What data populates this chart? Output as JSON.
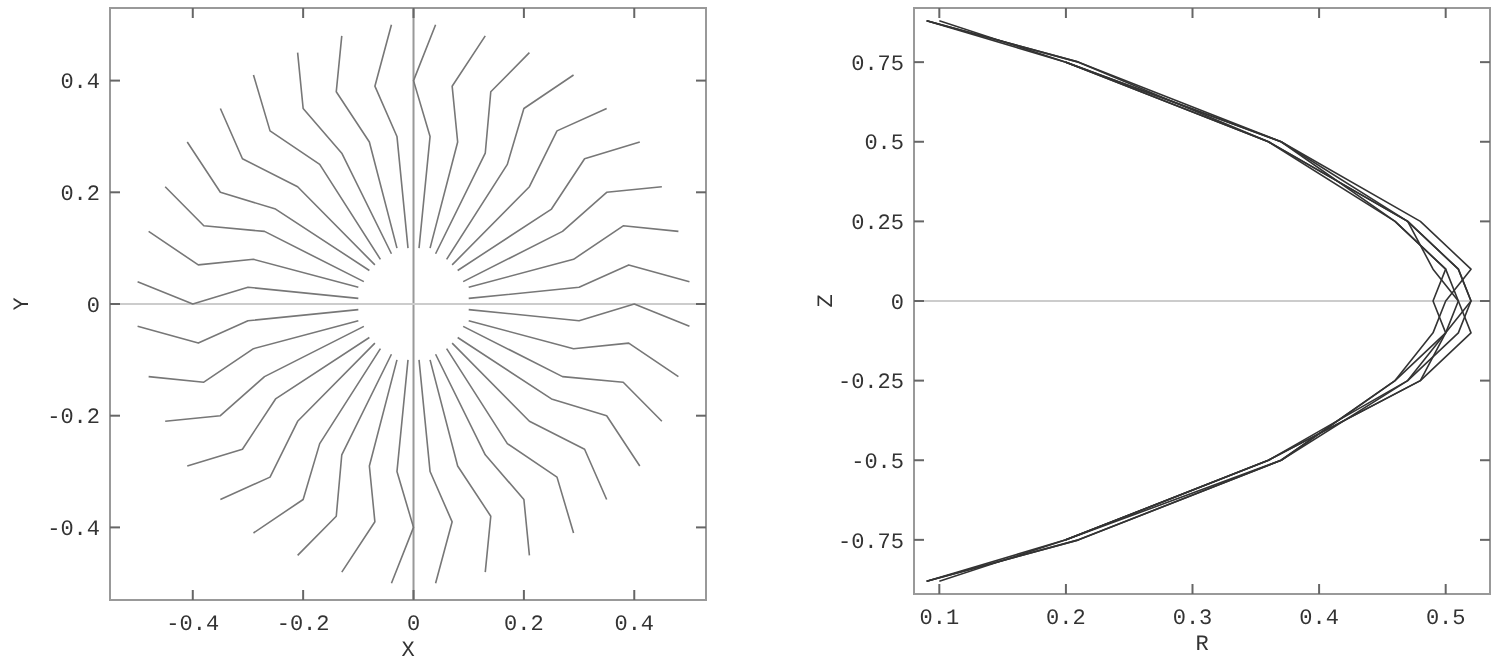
{
  "chart_data": [
    {
      "type": "line",
      "xlabel": "X",
      "ylabel": "Y",
      "xlim": [
        -0.55,
        0.53
      ],
      "ylim": [
        -0.53,
        0.53
      ],
      "xticks": [
        -0.4,
        -0.2,
        0,
        0.2,
        0.4
      ],
      "yticks": [
        -0.4,
        -0.2,
        0,
        0.2,
        0.4
      ],
      "grid": false,
      "marker": "none",
      "line_style": "solid",
      "ref_lines": [
        {
          "axis": "x",
          "value": 0,
          "color": "#999999"
        },
        {
          "axis": "y",
          "value": 0,
          "color": "#cccccc"
        }
      ],
      "series": [
        {
          "color": "#777777",
          "x": [
            0.1,
            0.3,
            0.39,
            0.5
          ],
          "values": [
            0.01,
            0.03,
            0.07,
            0.04
          ]
        },
        {
          "color": "#777777",
          "x": [
            0.1,
            0.29,
            0.38,
            0.48
          ],
          "values": [
            0.03,
            0.08,
            0.14,
            0.13
          ]
        },
        {
          "color": "#777777",
          "x": [
            0.09,
            0.27,
            0.35,
            0.45
          ],
          "values": [
            0.04,
            0.13,
            0.2,
            0.21
          ]
        },
        {
          "color": "#777777",
          "x": [
            0.08,
            0.25,
            0.31,
            0.41
          ],
          "values": [
            0.06,
            0.17,
            0.26,
            0.29
          ]
        },
        {
          "color": "#777777",
          "x": [
            0.07,
            0.21,
            0.26,
            0.35
          ],
          "values": [
            0.07,
            0.21,
            0.31,
            0.35
          ]
        },
        {
          "color": "#777777",
          "x": [
            0.06,
            0.17,
            0.2,
            0.29
          ],
          "values": [
            0.08,
            0.25,
            0.35,
            0.41
          ]
        },
        {
          "color": "#777777",
          "x": [
            0.04,
            0.13,
            0.14,
            0.21
          ],
          "values": [
            0.09,
            0.27,
            0.38,
            0.45
          ]
        },
        {
          "color": "#777777",
          "x": [
            0.03,
            0.08,
            0.07,
            0.13
          ],
          "values": [
            0.1,
            0.29,
            0.39,
            0.48
          ]
        },
        {
          "color": "#777777",
          "x": [
            0.01,
            0.03,
            0,
            0.04
          ],
          "values": [
            0.1,
            0.3,
            0.4,
            0.5
          ]
        },
        {
          "color": "#777777",
          "x": [
            -0.01,
            -0.03,
            -0.07,
            -0.04
          ],
          "values": [
            0.1,
            0.3,
            0.39,
            0.5
          ]
        },
        {
          "color": "#777777",
          "x": [
            -0.03,
            -0.08,
            -0.14,
            -0.13
          ],
          "values": [
            0.1,
            0.29,
            0.38,
            0.48
          ]
        },
        {
          "color": "#777777",
          "x": [
            -0.04,
            -0.13,
            -0.2,
            -0.21
          ],
          "values": [
            0.09,
            0.27,
            0.35,
            0.45
          ]
        },
        {
          "color": "#777777",
          "x": [
            -0.06,
            -0.17,
            -0.26,
            -0.29
          ],
          "values": [
            0.08,
            0.25,
            0.31,
            0.41
          ]
        },
        {
          "color": "#777777",
          "x": [
            -0.07,
            -0.21,
            -0.31,
            -0.35
          ],
          "values": [
            0.07,
            0.21,
            0.26,
            0.35
          ]
        },
        {
          "color": "#777777",
          "x": [
            -0.08,
            -0.25,
            -0.35,
            -0.41
          ],
          "values": [
            0.06,
            0.17,
            0.2,
            0.29
          ]
        },
        {
          "color": "#777777",
          "x": [
            -0.09,
            -0.27,
            -0.38,
            -0.45
          ],
          "values": [
            0.04,
            0.13,
            0.14,
            0.21
          ]
        },
        {
          "color": "#777777",
          "x": [
            -0.1,
            -0.29,
            -0.39,
            -0.48
          ],
          "values": [
            0.03,
            0.08,
            0.07,
            0.13
          ]
        },
        {
          "color": "#777777",
          "x": [
            -0.1,
            -0.3,
            -0.4,
            -0.5
          ],
          "values": [
            0.01,
            0.03,
            0,
            0.04
          ]
        },
        {
          "color": "#777777",
          "x": [
            -0.1,
            -0.3,
            -0.39,
            -0.5
          ],
          "values": [
            -0.01,
            -0.03,
            -0.07,
            -0.04
          ]
        },
        {
          "color": "#777777",
          "x": [
            -0.1,
            -0.29,
            -0.38,
            -0.48
          ],
          "values": [
            -0.03,
            -0.08,
            -0.14,
            -0.13
          ]
        },
        {
          "color": "#777777",
          "x": [
            -0.09,
            -0.27,
            -0.35,
            -0.45
          ],
          "values": [
            -0.04,
            -0.13,
            -0.2,
            -0.21
          ]
        },
        {
          "color": "#777777",
          "x": [
            -0.08,
            -0.25,
            -0.31,
            -0.41
          ],
          "values": [
            -0.06,
            -0.17,
            -0.26,
            -0.29
          ]
        },
        {
          "color": "#777777",
          "x": [
            -0.07,
            -0.21,
            -0.26,
            -0.35
          ],
          "values": [
            -0.07,
            -0.21,
            -0.31,
            -0.35
          ]
        },
        {
          "color": "#777777",
          "x": [
            -0.06,
            -0.17,
            -0.2,
            -0.29
          ],
          "values": [
            -0.08,
            -0.25,
            -0.35,
            -0.41
          ]
        },
        {
          "color": "#777777",
          "x": [
            -0.04,
            -0.13,
            -0.14,
            -0.21
          ],
          "values": [
            -0.09,
            -0.27,
            -0.38,
            -0.45
          ]
        },
        {
          "color": "#777777",
          "x": [
            -0.03,
            -0.08,
            -0.07,
            -0.13
          ],
          "values": [
            -0.1,
            -0.29,
            -0.39,
            -0.48
          ]
        },
        {
          "color": "#777777",
          "x": [
            -0.01,
            -0.03,
            0,
            -0.04
          ],
          "values": [
            -0.1,
            -0.3,
            -0.4,
            -0.5
          ]
        },
        {
          "color": "#777777",
          "x": [
            0.01,
            0.03,
            0.07,
            0.04
          ],
          "values": [
            -0.1,
            -0.3,
            -0.39,
            -0.5
          ]
        },
        {
          "color": "#777777",
          "x": [
            0.03,
            0.08,
            0.14,
            0.13
          ],
          "values": [
            -0.1,
            -0.29,
            -0.38,
            -0.48
          ]
        },
        {
          "color": "#777777",
          "x": [
            0.04,
            0.13,
            0.2,
            0.21
          ],
          "values": [
            -0.09,
            -0.27,
            -0.35,
            -0.45
          ]
        },
        {
          "color": "#777777",
          "x": [
            0.06,
            0.17,
            0.26,
            0.29
          ],
          "values": [
            -0.08,
            -0.25,
            -0.31,
            -0.41
          ]
        },
        {
          "color": "#777777",
          "x": [
            0.07,
            0.21,
            0.31,
            0.35
          ],
          "values": [
            -0.07,
            -0.21,
            -0.26,
            -0.35
          ]
        },
        {
          "color": "#777777",
          "x": [
            0.08,
            0.25,
            0.35,
            0.41
          ],
          "values": [
            -0.06,
            -0.17,
            -0.2,
            -0.29
          ]
        },
        {
          "color": "#777777",
          "x": [
            0.09,
            0.27,
            0.38,
            0.45
          ],
          "values": [
            -0.04,
            -0.13,
            -0.14,
            -0.21
          ]
        },
        {
          "color": "#777777",
          "x": [
            0.1,
            0.29,
            0.39,
            0.48
          ],
          "values": [
            -0.03,
            -0.08,
            -0.07,
            -0.13
          ]
        },
        {
          "color": "#777777",
          "x": [
            0.1,
            0.3,
            0.4,
            0.5
          ],
          "values": [
            -0.01,
            -0.03,
            0,
            -0.04
          ]
        }
      ]
    },
    {
      "type": "line",
      "xlabel": "R",
      "ylabel": "Z",
      "xlim": [
        0.08,
        0.535
      ],
      "ylim": [
        -0.92,
        0.92
      ],
      "xticks": [
        0.1,
        0.2,
        0.3,
        0.4,
        0.5
      ],
      "yticks": [
        -0.75,
        -0.5,
        -0.25,
        0,
        0.25,
        0.5,
        0.75
      ],
      "grid": false,
      "marker": "none",
      "line_style": "solid",
      "ref_lines": [
        {
          "axis": "y",
          "value": 0,
          "color": "#cccccc"
        }
      ],
      "series": [
        {
          "color": "#333333",
          "x": [
            0.09,
            0.2,
            0.36,
            0.46,
            0.5,
            0.51,
            0.5,
            0.46,
            0.37,
            0.21,
            0.09
          ],
          "values": [
            0.88,
            0.75,
            0.5,
            0.25,
            0.1,
            0,
            -0.1,
            -0.25,
            -0.5,
            -0.75,
            -0.88
          ]
        },
        {
          "color": "#333333",
          "x": [
            0.2,
            0.37,
            0.47,
            0.51,
            0.52,
            0.51,
            0.47,
            0.36,
            0.2,
            0.09
          ],
          "values": [
            0.75,
            0.5,
            0.25,
            0.1,
            0,
            -0.1,
            -0.25,
            -0.5,
            -0.75,
            -0.88
          ]
        },
        {
          "color": "#333333",
          "x": [
            0.09,
            0.21,
            0.37,
            0.48,
            0.52,
            0.5,
            0.49,
            0.46,
            0.37,
            0.2
          ],
          "values": [
            0.88,
            0.75,
            0.5,
            0.25,
            0.1,
            0,
            -0.1,
            -0.25,
            -0.5,
            -0.75
          ]
        },
        {
          "color": "#333333",
          "x": [
            0.2,
            0.36,
            0.47,
            0.49,
            0.51,
            0.52,
            0.48,
            0.36,
            0.2
          ],
          "values": [
            0.75,
            0.5,
            0.25,
            0.1,
            0,
            -0.1,
            -0.25,
            -0.5,
            -0.75
          ]
        },
        {
          "color": "#333333",
          "x": [
            0.1,
            0.2,
            0.37,
            0.46,
            0.5,
            0.49,
            0.5,
            0.47,
            0.37,
            0.21,
            0.09
          ],
          "values": [
            0.88,
            0.75,
            0.5,
            0.25,
            0.1,
            0,
            -0.1,
            -0.25,
            -0.5,
            -0.75,
            -0.88
          ]
        },
        {
          "color": "#333333",
          "x": [
            0.09,
            0.21,
            0.36,
            0.47,
            0.51,
            0.52,
            0.5,
            0.48,
            0.36,
            0.2,
            0.1
          ],
          "values": [
            0.88,
            0.75,
            0.5,
            0.25,
            0.1,
            0,
            -0.1,
            -0.25,
            -0.5,
            -0.75,
            -0.88
          ]
        }
      ]
    }
  ]
}
